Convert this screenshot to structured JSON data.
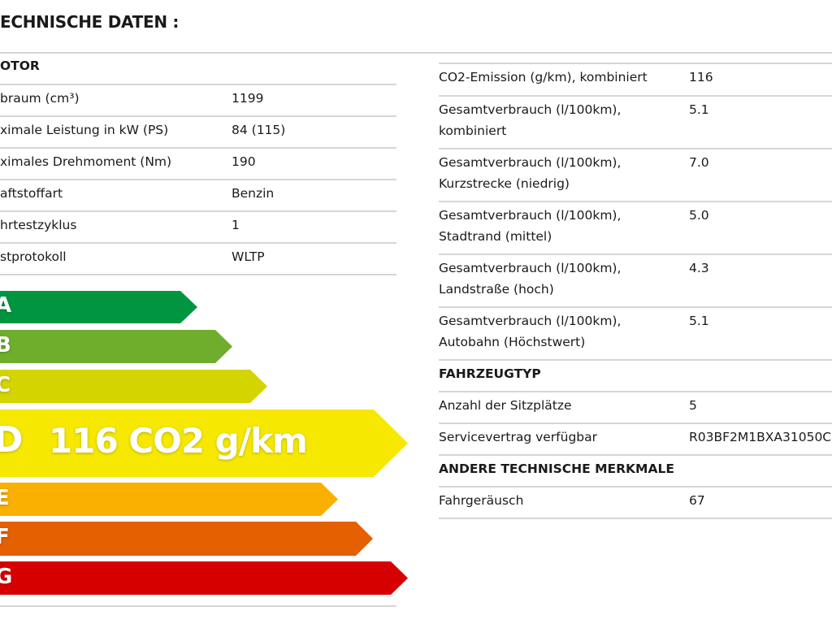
{
  "title": "ECHNISCHE DATEN :",
  "left_section": {
    "header": "OTOR",
    "rows": [
      {
        "label": "braum (cm³)",
        "value": "1199"
      },
      {
        "label": "ximale Leistung in kW (PS)",
        "value": "84 (115)"
      },
      {
        "label": "ximales Drehmoment (Nm)",
        "value": "190"
      },
      {
        "label": "aftstoffart",
        "value": "Benzin"
      },
      {
        "label": "hrtestzyklus",
        "value": "1"
      },
      {
        "label": "stprotokoll",
        "value": "WLTP"
      }
    ]
  },
  "energy_label": {
    "classes": [
      {
        "letter": "A",
        "color": "#009641"
      },
      {
        "letter": "B",
        "color": "#6fad2d"
      },
      {
        "letter": "C",
        "color": "#d3d400"
      },
      {
        "letter": "D",
        "color": "#f6e800",
        "text": "116 CO2 g/km",
        "active": true
      },
      {
        "letter": "E",
        "color": "#f9b000"
      },
      {
        "letter": "F",
        "color": "#e46000"
      },
      {
        "letter": "G",
        "color": "#d60000"
      }
    ]
  },
  "right_section": {
    "consumption": [
      {
        "label": [
          "CO2-Emission (g/km), kombiniert"
        ],
        "value": "116"
      },
      {
        "label": [
          "Gesamtverbrauch (l/100km),",
          "kombiniert"
        ],
        "value": "5.1"
      },
      {
        "label": [
          "Gesamtverbrauch (l/100km),",
          "Kurzstrecke (niedrig)"
        ],
        "value": "7.0"
      },
      {
        "label": [
          "Gesamtverbrauch (l/100km),",
          "Stadtrand (mittel)"
        ],
        "value": "5.0"
      },
      {
        "label": [
          "Gesamtverbrauch (l/100km),",
          "Landstraße (hoch)"
        ],
        "value": "4.3"
      },
      {
        "label": [
          "Gesamtverbrauch (l/100km),",
          "Autobahn (Höchstwert)"
        ],
        "value": "5.1"
      }
    ],
    "vehicle_type": {
      "header": "FAHRZEUGTYP",
      "rows": [
        {
          "label": "Anzahl der Sitzplätze",
          "value": "5"
        },
        {
          "label": "Servicevertrag verfügbar",
          "value": "R03BF2M1BXA31050C"
        }
      ]
    },
    "other": {
      "header": "ANDERE TECHNISCHE MERKMALE",
      "rows": [
        {
          "label": "Fahrgeräusch",
          "value": "67"
        }
      ]
    }
  }
}
